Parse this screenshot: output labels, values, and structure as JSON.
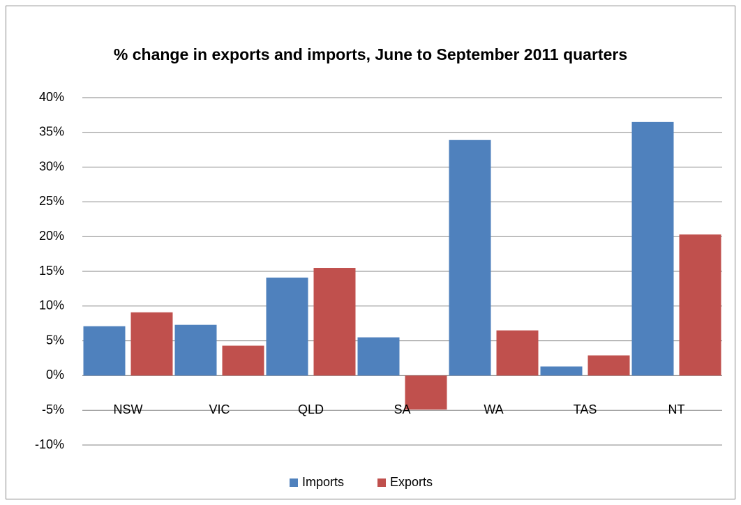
{
  "chart_data": {
    "type": "bar",
    "title": "% change in exports and imports, June to September 2011 quarters",
    "categories": [
      "NSW",
      "VIC",
      "QLD",
      "SA",
      "WA",
      "TAS",
      "NT"
    ],
    "series": [
      {
        "name": "Imports",
        "color": "#4f81bd",
        "values": [
          7.1,
          7.3,
          14.1,
          5.5,
          33.9,
          1.3,
          36.5
        ]
      },
      {
        "name": "Exports",
        "color": "#c0504d",
        "values": [
          9.1,
          4.3,
          15.5,
          -4.9,
          6.5,
          2.9,
          20.3
        ]
      }
    ],
    "ylim": [
      -10,
      40
    ],
    "yticks": [
      {
        "value": -10,
        "label": "-10%"
      },
      {
        "value": -5,
        "label": "-5%"
      },
      {
        "value": 0,
        "label": "0%"
      },
      {
        "value": 5,
        "label": "5%"
      },
      {
        "value": 10,
        "label": "10%"
      },
      {
        "value": 15,
        "label": "15%"
      },
      {
        "value": 20,
        "label": "20%"
      },
      {
        "value": 25,
        "label": "25%"
      },
      {
        "value": 30,
        "label": "30%"
      },
      {
        "value": 35,
        "label": "35%"
      },
      {
        "value": 40,
        "label": "40%"
      }
    ],
    "grid": true,
    "legend": "bottom"
  }
}
